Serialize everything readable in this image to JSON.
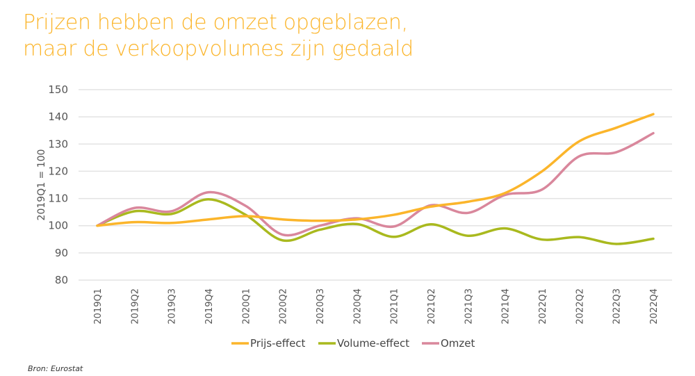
{
  "title_line1": "Prijzen hebben de omzet opgeblazen,",
  "title_line2": "maar de verkoopvolumes zijn gedaald",
  "source": "Bron: Eurostat",
  "colors": {
    "title": "#FBB52B",
    "prijs": "#FBB52B",
    "volume": "#A9B91E",
    "omzet": "#D9879C"
  },
  "chart_data": {
    "type": "line",
    "smooth": true,
    "title": "Prijzen hebben de omzet opgeblazen, maar de verkoopvolumes zijn gedaald",
    "xlabel": "",
    "ylabel": "2019Q1 = 100",
    "ylim": [
      80,
      150
    ],
    "yticks": [
      "80",
      "90",
      "100",
      "110",
      "120",
      "130",
      "140",
      "150"
    ],
    "grid": true,
    "legend": "bottom",
    "categories": [
      "2019Q1",
      "2019Q2",
      "2019Q3",
      "2019Q4",
      "2020Q1",
      "2020Q2",
      "2020Q3",
      "2020Q4",
      "2021Q1",
      "2021Q2",
      "2021Q3",
      "2021Q4",
      "2022Q1",
      "2022Q2",
      "2022Q3",
      "2022Q4"
    ],
    "series": [
      {
        "name": "Prijs-effect",
        "values": [
          100,
          101.3,
          101,
          102.3,
          103.5,
          102.3,
          101.8,
          102.3,
          104,
          107,
          108.8,
          112,
          120,
          131,
          136,
          141
        ]
      },
      {
        "name": "Volume-effect",
        "values": [
          100,
          105.3,
          104.3,
          109.7,
          104,
          94.6,
          98.5,
          100.6,
          95.9,
          100.5,
          96.3,
          99,
          94.9,
          95.8,
          93.3,
          95.2
        ]
      },
      {
        "name": "Omzet",
        "values": [
          100,
          106.5,
          105.3,
          112.3,
          107.3,
          96.7,
          100,
          102.7,
          99.7,
          107.5,
          104.7,
          111.3,
          113.3,
          125.5,
          127,
          134
        ]
      }
    ]
  }
}
